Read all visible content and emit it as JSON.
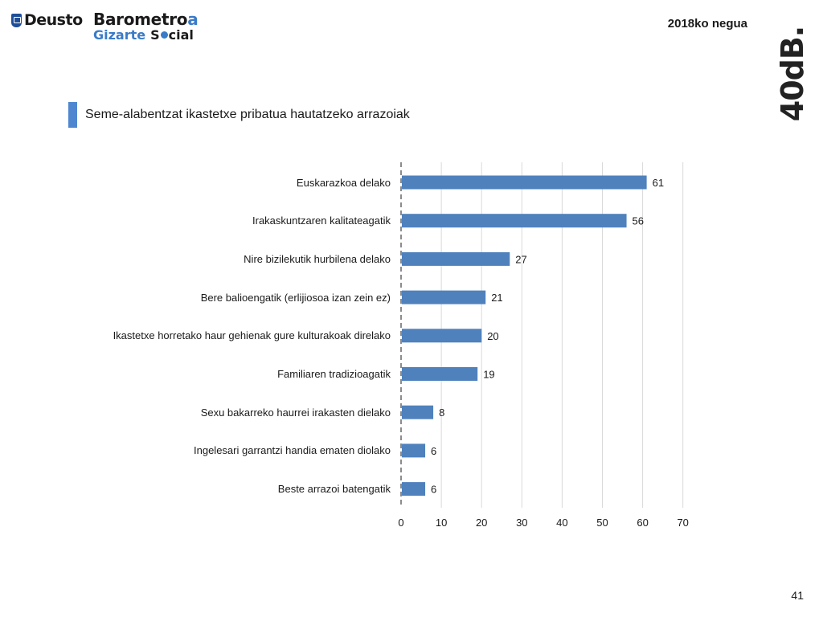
{
  "header": {
    "logo_deusto": "Deusto",
    "logo_barometro": {
      "main": "Barometro",
      "accent": "a",
      "line2_a": "Gizarte",
      "line2_b1": "S",
      "line2_b2": "cial"
    },
    "season": "2018ko negua",
    "brand": "40dB."
  },
  "slide": {
    "title": "Seme-alabentzat ikastetxe pribatua hautatzeko arrazoiak",
    "page_number": "41"
  },
  "colors": {
    "bar": "#4f81bd",
    "accent": "#4e87d0",
    "grid": "#d9d9d9"
  },
  "chart_data": {
    "type": "bar",
    "orientation": "horizontal",
    "categories": [
      "Euskarazkoa delako",
      "Irakaskuntzaren kalitateagatik",
      "Nire bizilekutik hurbilena delako",
      "Bere balioengatik (erlijiosoa izan zein ez)",
      "Ikastetxe horretako haur gehienak gure kulturakoak direlako",
      "Familiaren tradizioagatik",
      "Sexu bakarreko haurrei irakasten dielako",
      "Ingelesari garrantzi handia ematen diolako",
      "Beste arrazoi batengatik"
    ],
    "values": [
      61,
      56,
      27,
      21,
      20,
      19,
      8,
      6,
      6
    ],
    "xlim": [
      0,
      70
    ],
    "ticks": [
      0,
      10,
      20,
      30,
      40,
      50,
      60,
      70
    ],
    "grid": "vertical",
    "data_labels": true
  }
}
